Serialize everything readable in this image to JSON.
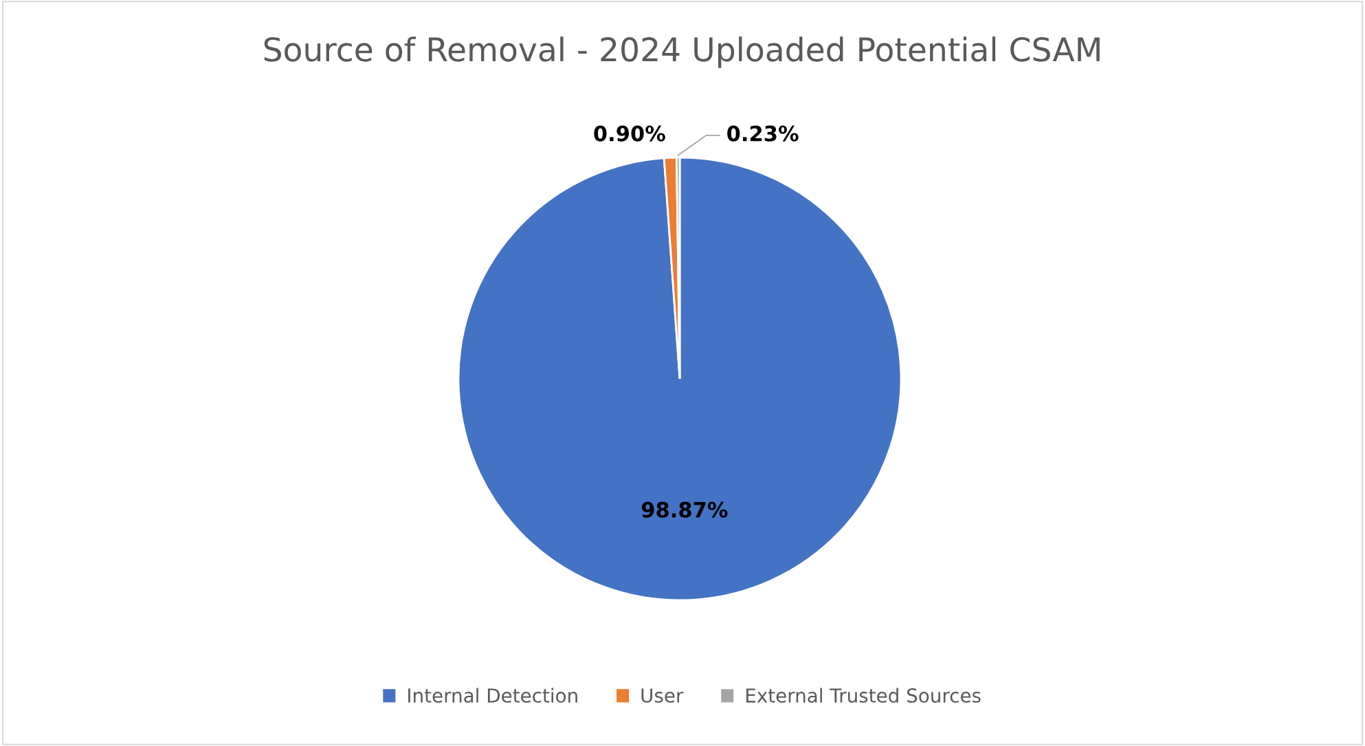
{
  "chart_data": {
    "type": "pie",
    "title": "Source of Removal - 2024 Uploaded Potential CSAM",
    "categories": [
      "Internal Detection",
      "User",
      "External Trusted Sources"
    ],
    "values": [
      98.87,
      0.9,
      0.23
    ],
    "colors": [
      "#4472c4",
      "#ed7d31",
      "#a5a5a5"
    ],
    "value_labels": [
      "98.87%",
      "0.90%",
      "0.23%"
    ],
    "legend": "bottom"
  }
}
